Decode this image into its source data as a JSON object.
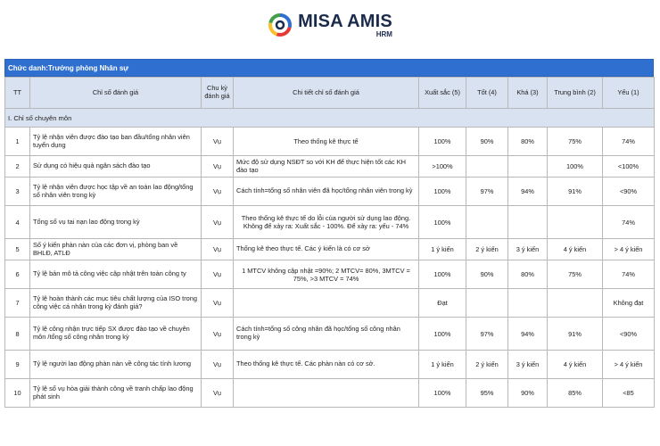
{
  "brand": {
    "name": "MISA AMIS",
    "sub": "HRM"
  },
  "title": "Chức danh:Trưởng phòng Nhân sự",
  "headers": [
    "TT",
    "Chỉ số đánh giá",
    "Chu kỳ đánh giá",
    "Chi tiết chỉ số đánh giá",
    "Xuất sắc (5)",
    "Tốt (4)",
    "Khá (3)",
    "Trung bình (2)",
    "Yếu (1)"
  ],
  "section": "I. Chỉ số chuyên môn",
  "rows": [
    [
      "1",
      "Tỷ lệ nhận viên được đào tạo ban đầu/tổng nhân viên tuyển dụng",
      "Vụ",
      "Theo thống kê thực tế",
      "100%",
      "90%",
      "80%",
      "75%",
      "74%"
    ],
    [
      "2",
      "Sử dụng có hiệu quả ngân sách đào tạo",
      "Vụ",
      "Mức độ sử dụng NSĐT so với KH để thực hiện tốt các KH đào tạo",
      ">100%",
      "",
      "",
      "100%",
      "<100%"
    ],
    [
      "3",
      "Tỷ lệ nhận viên được học tập về an toàn lao động/tổng số nhân viên trong kỳ",
      "Vụ",
      "Cách tính=tổng số nhân viên đã học/tổng nhân viên trong kỳ",
      "100%",
      "97%",
      "94%",
      "91%",
      "<90%"
    ],
    [
      "4",
      "Tổng số vụ tai nạn lao động trong kỳ",
      "Vụ",
      "Theo thống kê thực tế do lỗi của người sử dụng lao động. Không để xảy ra: Xuất sắc - 100%. Để xảy ra: yếu - 74%",
      "100%",
      "",
      "",
      "",
      "74%"
    ],
    [
      "5",
      "Số ý kiến phàn nàn của các đơn vị, phòng ban về BHLĐ, ATLĐ",
      "Vụ",
      "Thống kê theo thực tế. Các ý kiến là có cơ sở",
      "1 ý kiến",
      "2 ý kiến",
      "3 ý kiến",
      "4 ý kiến",
      "> 4 ý kiến"
    ],
    [
      "6",
      "Tỷ lệ bản mô tả công việc cập nhật trên toàn công ty",
      "Vụ",
      "1 MTCV không cập nhật =90%; 2 MTCV= 80%, 3MTCV = 75%, >3 MTCV = 74%",
      "100%",
      "90%",
      "80%",
      "75%",
      "74%"
    ],
    [
      "7",
      "Tỷ lệ hoàn thành các mục tiêu chất lượng của ISO trong công việc cá nhân trong kỳ đánh giá?",
      "Vụ",
      "",
      "Đạt",
      "",
      "",
      "",
      "Không đạt"
    ],
    [
      "8",
      "Tỷ lệ công nhận trực tiếp SX được đào tạo về chuyên môn /tổng số công nhân trong kỳ",
      "Vụ",
      "Cách tính=tổng số công nhân đã học/tổng số công nhân trong kỳ",
      "100%",
      "97%",
      "94%",
      "91%",
      "<90%"
    ],
    [
      "9",
      "Tỷ lệ người lao động phàn nàn về công tác tính lương",
      "Vụ",
      "Theo thống kê thực tế. Các phàn nàn có cơ sở.",
      "1 ý kiến",
      "2 ý kiến",
      "3 ý kiến",
      "4 ý kiến",
      "> 4 ý kiến"
    ],
    [
      "10",
      "Tỷ lệ số vụ hòa giải thành công về tranh chấp lao động phát sinh",
      "Vụ",
      "",
      "100%",
      "95%",
      "90%",
      "85%",
      "<85"
    ]
  ]
}
